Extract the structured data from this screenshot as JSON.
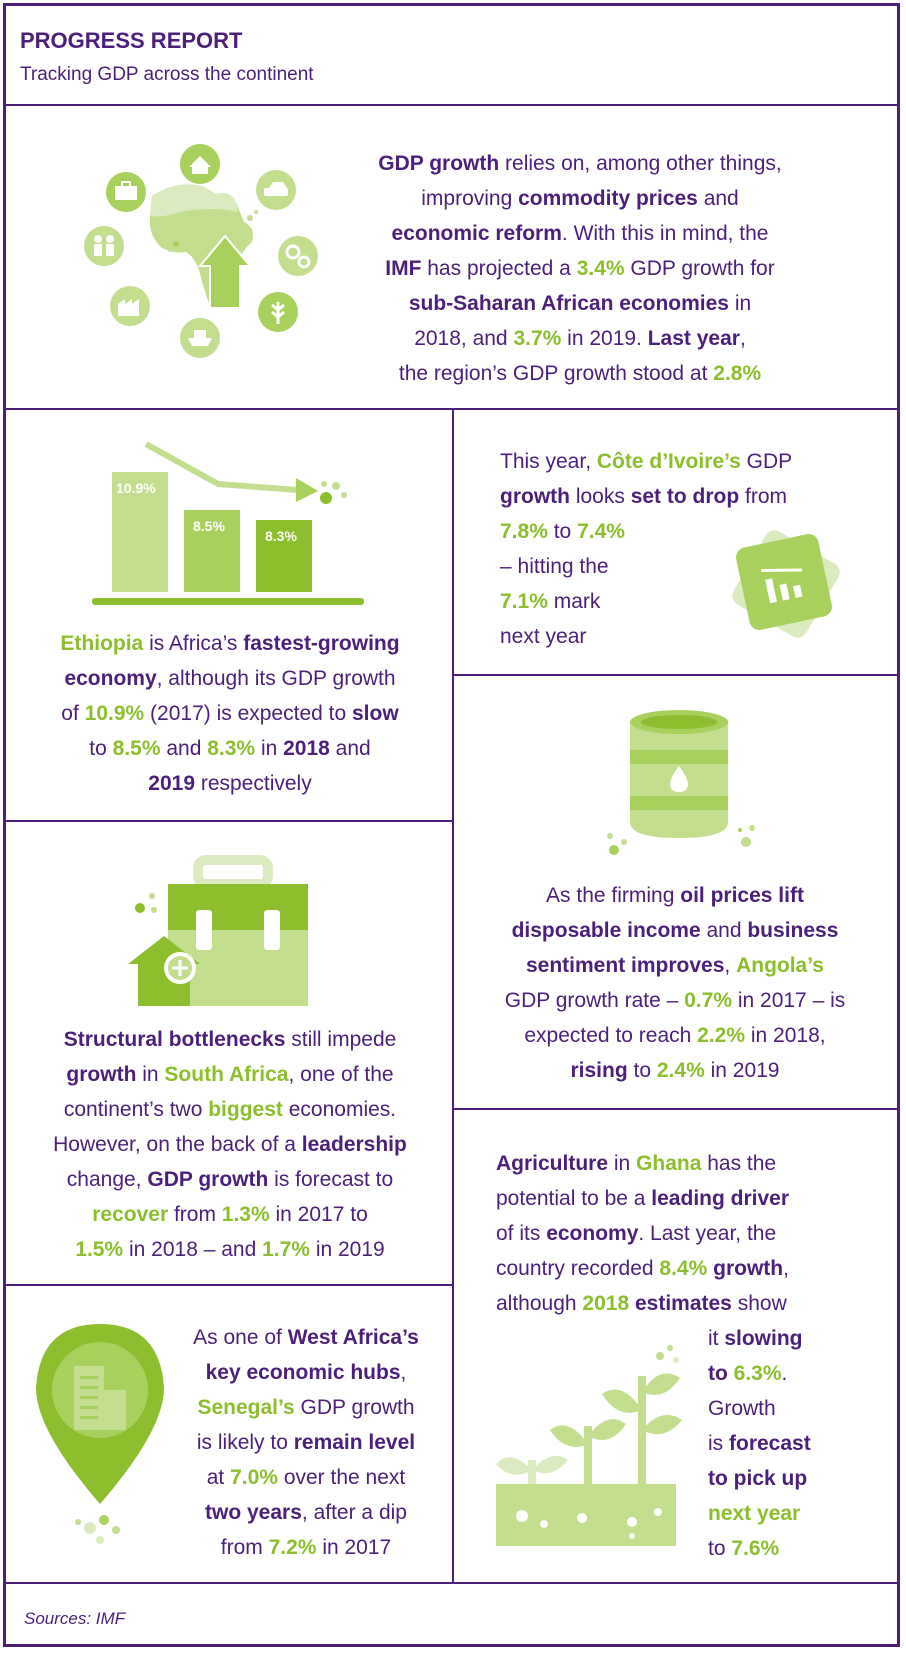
{
  "header": {
    "title": "PROGRESS REPORT",
    "subtitle": "Tracking GDP across the continent"
  },
  "intro": {
    "l1": {
      "a": "GDP growth",
      "b": " relies on, among other things,"
    },
    "l2": {
      "a": "improving ",
      "b": "commodity prices",
      "c": " and"
    },
    "l3": {
      "a": "economic reform",
      "b": ". With this in mind, the"
    },
    "l4": {
      "a": "IMF",
      "b": " has projected a ",
      "c": "3.4%",
      "d": " GDP growth for"
    },
    "l5": {
      "a": "sub-Saharan African economies",
      "b": " in"
    },
    "l6": {
      "a": "2018, and ",
      "b": "3.7%",
      "c": " in 2019. ",
      "d": "Last year",
      "e": ","
    },
    "l7": {
      "a": "the region’s GDP growth stood at ",
      "b": "2.8%"
    }
  },
  "ethiopia": {
    "bars": [
      {
        "label": "10.9%",
        "value": 10.9
      },
      {
        "label": "8.5%",
        "value": 8.5
      },
      {
        "label": "8.3%",
        "value": 8.3
      }
    ],
    "l1": {
      "a": "Ethiopia",
      "b": " is Africa’s ",
      "c": "fastest-growing"
    },
    "l2": {
      "a": "economy",
      "b": ", although its GDP growth"
    },
    "l3": {
      "a": "of ",
      "b": "10.9%",
      "c": " (2017) is expected to ",
      "d": "slow"
    },
    "l4": {
      "a": "to ",
      "b": "8.5%",
      "c": " and ",
      "d": "8.3%",
      "e": " in ",
      "f": "2018",
      "g": " and"
    },
    "l5": {
      "a": "2019",
      "b": " respectively"
    }
  },
  "cote": {
    "l1": {
      "a": "This year, ",
      "b": "Côte d’Ivoire’s",
      "c": " GDP"
    },
    "l2": {
      "a": "growth",
      "b": " looks ",
      "c": "set to drop",
      "d": " from"
    },
    "l3": {
      "a": "7.8%",
      "b": " to ",
      "c": "7.4%"
    },
    "l4": "– hitting the",
    "l5": {
      "a": "7.1%",
      "b": " mark"
    },
    "l6": "next year"
  },
  "angola": {
    "l1": {
      "a": "As the firming ",
      "b": "oil prices lift"
    },
    "l2": {
      "a": "disposable income",
      "b": " and ",
      "c": "business"
    },
    "l3": {
      "a": "sentiment improves",
      "b": ", ",
      "c": "Angola’s"
    },
    "l4": {
      "a": "GDP growth rate – ",
      "b": "0.7%",
      "c": " in 2017 – is"
    },
    "l5": {
      "a": "expected to reach ",
      "b": "2.2%",
      "c": " in 2018,"
    },
    "l6": {
      "a": "rising",
      "b": " to ",
      "c": "2.4%",
      "d": " in 2019"
    }
  },
  "south_africa": {
    "l1": {
      "a": "Structural bottlenecks",
      "b": " still impede"
    },
    "l2": {
      "a": "growth",
      "b": " in ",
      "c": "South Africa",
      "d": ", one of the"
    },
    "l3": {
      "a": "continent’s two ",
      "b": "biggest",
      "c": " economies."
    },
    "l4": {
      "a": "However, on the back of a ",
      "b": "leadership"
    },
    "l5": {
      "a": "change, ",
      "b": "GDP growth",
      "c": " is forecast to"
    },
    "l6": {
      "a": "recover",
      "b": " from ",
      "c": "1.3%",
      "d": " in 2017 to"
    },
    "l7": {
      "a": "1.5%",
      "b": " in 2018 – and ",
      "c": "1.7%",
      "d": " in 2019"
    }
  },
  "ghana": {
    "l1": {
      "a": "Agriculture",
      "b": " in ",
      "c": "Ghana",
      "d": " has the"
    },
    "l2": {
      "a": "potential to be a ",
      "b": "leading driver"
    },
    "l3": {
      "a": "of its ",
      "b": "economy",
      "c": ". Last year, the"
    },
    "l4": {
      "a": "country recorded ",
      "b": "8.4%",
      "c": " growth",
      "d": ","
    },
    "l5": {
      "a": "although ",
      "b": "2018",
      "c": " estimates",
      "d": " show"
    },
    "l6": {
      "a": "it ",
      "b": "slowing"
    },
    "l7": {
      "a": "to ",
      "b": "6.3%",
      "c": "."
    },
    "l8": "Growth",
    "l9": {
      "a": "is ",
      "b": "forecast"
    },
    "l10": "to pick up",
    "l11": "next year",
    "l12": {
      "a": "to ",
      "b": "7.6%"
    }
  },
  "senegal": {
    "l1": {
      "a": "As one of ",
      "b": "West Africa’s"
    },
    "l2": {
      "a": "key economic hubs",
      "b": ","
    },
    "l3": {
      "a": "Senegal’s",
      "b": " GDP growth"
    },
    "l4": {
      "a": "is likely to ",
      "b": "remain level"
    },
    "l5": {
      "a": "at ",
      "b": "7.0%",
      "c": " over the next"
    },
    "l6": {
      "a": "two years",
      "b": ", after a dip"
    },
    "l7": {
      "a": "from ",
      "b": "7.2%",
      "c": " in 2017"
    }
  },
  "footer": {
    "sources": "Sources: IMF"
  },
  "colors": {
    "purple": "#4b1f7a",
    "green": "#8cbe2d",
    "light_green": "#c4de8f",
    "pale_green": "#dcebbf"
  },
  "icons": [
    "home-icon",
    "car-icon",
    "gears-icon",
    "wheat-icon",
    "ship-icon",
    "factory-icon",
    "people-icon",
    "briefcase-icon",
    "africa-map-icon",
    "arrow-up-icon",
    "trend-down-arrow-icon",
    "chart-tile-icon",
    "oil-barrel-icon",
    "briefcase-home-icon",
    "location-pin-icon",
    "plants-icon"
  ]
}
